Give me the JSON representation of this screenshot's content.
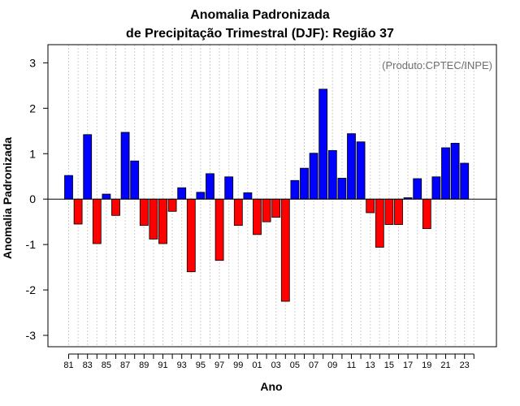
{
  "chart_data": {
    "type": "bar",
    "title": "Anomalia Padronizada",
    "subtitle": "de Precipitação Trimestral (DJF): Região 37",
    "xlabel": "Ano",
    "ylabel": "Anomalia Padronizada",
    "annotation": "(Produto:CPTEC/INPE)",
    "ylim": [
      -3.25,
      3.4
    ],
    "yticks": [
      -3,
      -2,
      -1,
      0,
      1,
      2,
      3
    ],
    "xtick_labels": [
      "81",
      "83",
      "85",
      "87",
      "89",
      "91",
      "93",
      "95",
      "97",
      "99",
      "01",
      "03",
      "05",
      "07",
      "09",
      "11",
      "13",
      "15",
      "17",
      "19",
      "21",
      "23"
    ],
    "categories": [
      "81",
      "82",
      "83",
      "84",
      "85",
      "86",
      "87",
      "88",
      "89",
      "90",
      "91",
      "92",
      "93",
      "94",
      "95",
      "96",
      "97",
      "98",
      "99",
      "00",
      "01",
      "02",
      "03",
      "04",
      "05",
      "06",
      "07",
      "08",
      "09",
      "10",
      "11",
      "12",
      "13",
      "14",
      "15",
      "16",
      "17",
      "18",
      "19",
      "20",
      "21",
      "22",
      "23",
      "24"
    ],
    "values": [
      0.52,
      -0.55,
      1.42,
      -0.98,
      0.11,
      -0.36,
      1.47,
      0.84,
      -0.58,
      -0.88,
      -0.98,
      -0.27,
      0.25,
      -1.6,
      0.15,
      0.56,
      -1.35,
      0.49,
      -0.58,
      0.14,
      -0.78,
      -0.5,
      -0.4,
      -2.25,
      0.41,
      0.68,
      1.01,
      2.42,
      1.07,
      0.46,
      1.44,
      1.26,
      -0.3,
      -1.06,
      -0.56,
      -0.56,
      0.03,
      0.45,
      -0.65,
      0.49,
      1.13,
      1.23,
      0.79,
      null
    ],
    "colors": {
      "positive": "#0000ff",
      "negative": "#ff0000",
      "grid": "#d0d0d0"
    }
  }
}
